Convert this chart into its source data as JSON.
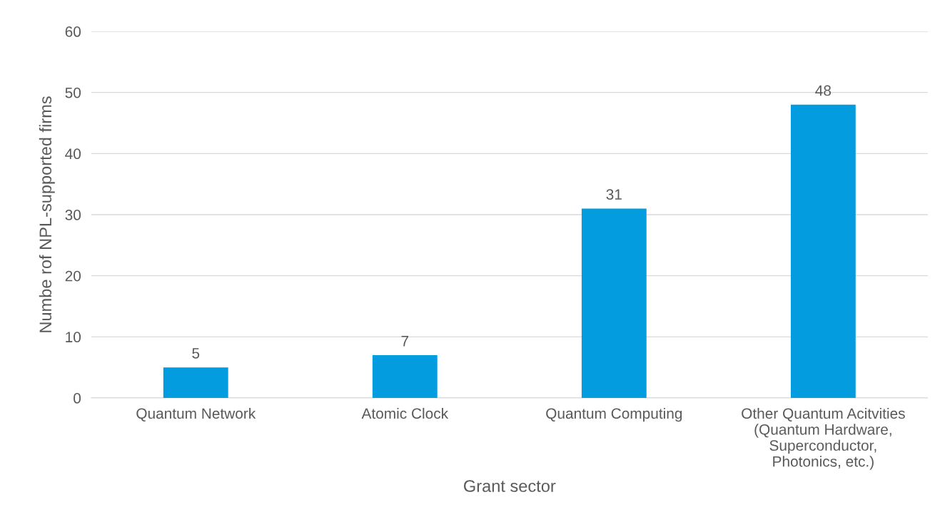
{
  "chart_data": {
    "type": "bar",
    "xlabel": "Grant sector",
    "ylabel": "Numbe rof NPL-supported firms",
    "categories": [
      "Quantum Network",
      "Atomic Clock",
      "Quantum Computing",
      "Other Quantum Acitvities\n(Quantum Hardware,\nSuperconductor,\nPhotonics, etc.)"
    ],
    "values": [
      5,
      7,
      31,
      48
    ],
    "color": "#039ddf",
    "ylim": [
      0,
      60
    ],
    "yticks": [
      0,
      10,
      20,
      30,
      40,
      50,
      60
    ],
    "grid": "y",
    "data_labels": true
  }
}
